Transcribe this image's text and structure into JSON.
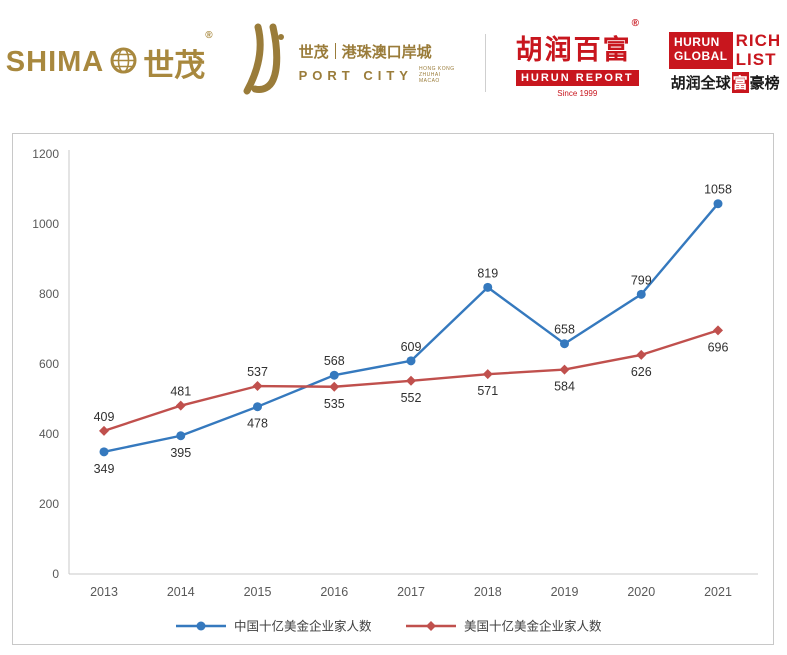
{
  "header": {
    "shimao": {
      "latin_prefix": "SHIMA",
      "globe_letter": "O",
      "cn": "世茂",
      "reg": "®"
    },
    "port_city": {
      "cn_brand": "世茂",
      "cn_name": "港珠澳口岸城",
      "en_name": "PORT CITY",
      "en_sub1": "HONG KONG",
      "en_sub2": "ZHUHAI",
      "en_sub3": "MACAO"
    },
    "hurun_report": {
      "cn": "胡润百富",
      "reg": "®",
      "en": "HURUN REPORT",
      "since": "Since 1999"
    },
    "rich_list": {
      "en_l1": "HURUN",
      "en_l2": "GLOBAL",
      "en_r1": "RICH",
      "en_r2": "LIST",
      "cn_pre": "胡润全球",
      "cn_mid": "富",
      "cn_post": "豪榜"
    }
  },
  "chart_data": {
    "type": "line",
    "x": [
      "2013",
      "2014",
      "2015",
      "2016",
      "2017",
      "2018",
      "2019",
      "2020",
      "2021"
    ],
    "series": [
      {
        "name": "中国十亿美金企业家人数",
        "color": "#3579be",
        "marker": "circle",
        "values": [
          349,
          395,
          478,
          568,
          609,
          819,
          658,
          799,
          1058
        ]
      },
      {
        "name": "美国十亿美金企业家人数",
        "color": "#c0504d",
        "marker": "diamond",
        "values": [
          409,
          481,
          537,
          535,
          552,
          571,
          584,
          626,
          696
        ]
      }
    ],
    "ylim": [
      0,
      1200
    ],
    "yticks": [
      0,
      200,
      400,
      600,
      800,
      1000,
      1200
    ],
    "grid": false,
    "legend_position": "bottom",
    "title": "",
    "xlabel": "",
    "ylabel": ""
  }
}
